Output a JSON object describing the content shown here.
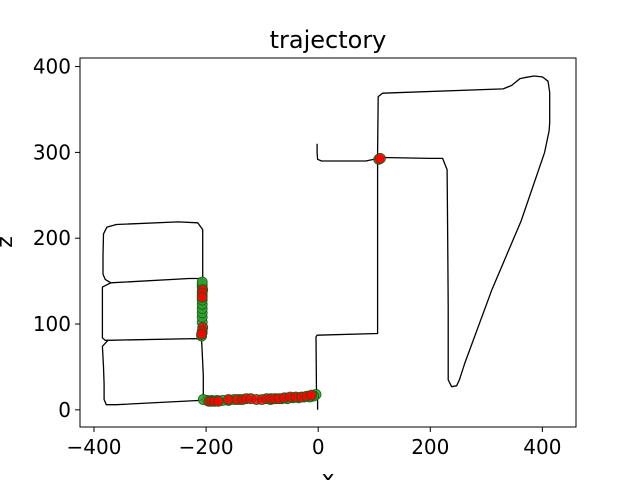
{
  "chart_data": {
    "type": "line",
    "title": "trajectory",
    "xlabel": "x",
    "ylabel": "z",
    "xlim": [
      -425,
      460
    ],
    "ylim": [
      -20,
      410
    ],
    "x_ticks": [
      -400,
      -200,
      0,
      200,
      400
    ],
    "y_ticks": [
      0,
      100,
      200,
      300,
      400
    ],
    "x_tick_labels": [
      "−400",
      "−200",
      "0",
      "200",
      "400"
    ],
    "y_tick_labels": [
      "0",
      "100",
      "200",
      "300",
      "400"
    ],
    "grid": false,
    "legend": "none",
    "colors": {
      "line": "#000000",
      "green": "#2ca02c",
      "red": "#ff0000",
      "marker_edge": "#1a5c1a"
    },
    "series": [
      {
        "kind": "path",
        "points": [
          [
            -1,
            0
          ],
          [
            -1,
            14
          ],
          [
            -3,
            18
          ],
          [
            -4,
            85
          ],
          [
            -2,
            87
          ],
          [
            106,
            89
          ],
          [
            106,
            300
          ],
          [
            107,
            365
          ],
          [
            115,
            369
          ],
          [
            330,
            374
          ],
          [
            345,
            378
          ],
          [
            360,
            386
          ],
          [
            368,
            387
          ],
          [
            385,
            389
          ],
          [
            400,
            388
          ],
          [
            410,
            383
          ],
          [
            413,
            370
          ],
          [
            413,
            350
          ],
          [
            413,
            335
          ],
          [
            412,
            325
          ],
          [
            404,
            300
          ],
          [
            362,
            220
          ],
          [
            310,
            140
          ],
          [
            262,
            55
          ],
          [
            252,
            35
          ],
          [
            247,
            28
          ],
          [
            238,
            27
          ],
          [
            232,
            35
          ],
          [
            232,
            70
          ],
          [
            232,
            120
          ],
          [
            231,
            200
          ],
          [
            230,
            280
          ],
          [
            222,
            293
          ],
          [
            200,
            293
          ],
          [
            115,
            294
          ],
          [
            100,
            292
          ],
          [
            85,
            290
          ],
          [
            6,
            290
          ],
          [
            -1,
            292
          ],
          [
            -2,
            300
          ],
          [
            -2,
            310
          ]
        ]
      },
      {
        "kind": "path",
        "points": [
          [
            -1,
            14
          ],
          [
            -5,
            15
          ],
          [
            -80,
            13
          ],
          [
            -170,
            11
          ],
          [
            -195,
            10
          ],
          [
            -200,
            11
          ],
          [
            -205,
            14
          ],
          [
            -205,
            40
          ],
          [
            -208,
            82
          ],
          [
            -220,
            83
          ],
          [
            -375,
            81
          ],
          [
            -385,
            74
          ],
          [
            -383,
            50
          ],
          [
            -382,
            30
          ],
          [
            -382,
            12
          ],
          [
            -378,
            6
          ],
          [
            -360,
            6
          ],
          [
            -210,
            11
          ],
          [
            -205,
            14
          ]
        ]
      },
      {
        "kind": "path",
        "points": [
          [
            -208,
            82
          ],
          [
            -206,
            95
          ],
          [
            -206,
            120
          ],
          [
            -206,
            149
          ],
          [
            -210,
            153
          ],
          [
            -230,
            153
          ],
          [
            -370,
            148
          ],
          [
            -385,
            143
          ],
          [
            -385,
            120
          ],
          [
            -385,
            100
          ],
          [
            -385,
            84
          ],
          [
            -380,
            81
          ],
          [
            -375,
            81
          ]
        ]
      },
      {
        "kind": "path",
        "points": [
          [
            -206,
            149
          ],
          [
            -206,
            175
          ],
          [
            -206,
            200
          ],
          [
            -206,
            210
          ],
          [
            -215,
            218
          ],
          [
            -250,
            219
          ],
          [
            -360,
            216
          ],
          [
            -377,
            213
          ],
          [
            -383,
            205
          ],
          [
            -384,
            180
          ],
          [
            -384,
            158
          ],
          [
            -380,
            152
          ],
          [
            -370,
            148
          ]
        ]
      },
      {
        "kind": "markers",
        "name": "green",
        "points": [
          [
            -4,
            18
          ],
          [
            -8,
            16
          ],
          [
            -15,
            15
          ],
          [
            -25,
            15
          ],
          [
            -35,
            14
          ],
          [
            -45,
            14
          ],
          [
            -55,
            13
          ],
          [
            -65,
            13
          ],
          [
            -75,
            13
          ],
          [
            -85,
            12
          ],
          [
            -140,
            12
          ],
          [
            -150,
            12
          ],
          [
            -160,
            11
          ],
          [
            -170,
            11
          ],
          [
            -180,
            11
          ],
          [
            -190,
            11
          ],
          [
            -198,
            11
          ],
          [
            -205,
            12
          ],
          [
            -208,
            86
          ],
          [
            -207,
            90
          ],
          [
            -207,
            102
          ],
          [
            -207,
            108
          ],
          [
            -207,
            113
          ],
          [
            -207,
            118
          ],
          [
            -207,
            123
          ],
          [
            -207,
            128
          ],
          [
            -207,
            133
          ],
          [
            -207,
            138
          ],
          [
            -207,
            143
          ],
          [
            -207,
            146
          ],
          [
            -207,
            149
          ]
        ]
      },
      {
        "kind": "markers",
        "name": "red",
        "points": [
          [
            -195,
            10
          ],
          [
            -190,
            10
          ],
          [
            -185,
            10
          ],
          [
            -178,
            10
          ],
          [
            -160,
            12
          ],
          [
            -145,
            12
          ],
          [
            -135,
            12
          ],
          [
            -128,
            13
          ],
          [
            -120,
            13
          ],
          [
            -110,
            12
          ],
          [
            -100,
            12
          ],
          [
            -92,
            13
          ],
          [
            -85,
            13
          ],
          [
            -78,
            13
          ],
          [
            -70,
            13
          ],
          [
            -60,
            14
          ],
          [
            -50,
            15
          ],
          [
            -40,
            15
          ],
          [
            -30,
            15
          ],
          [
            -20,
            16
          ],
          [
            -12,
            17
          ],
          [
            -206,
            140
          ],
          [
            -207,
            136
          ],
          [
            -207,
            131
          ],
          [
            -206,
            96
          ],
          [
            -207,
            92
          ],
          [
            -208,
            88
          ],
          [
            108,
            292
          ],
          [
            111,
            293
          ]
        ]
      }
    ]
  }
}
